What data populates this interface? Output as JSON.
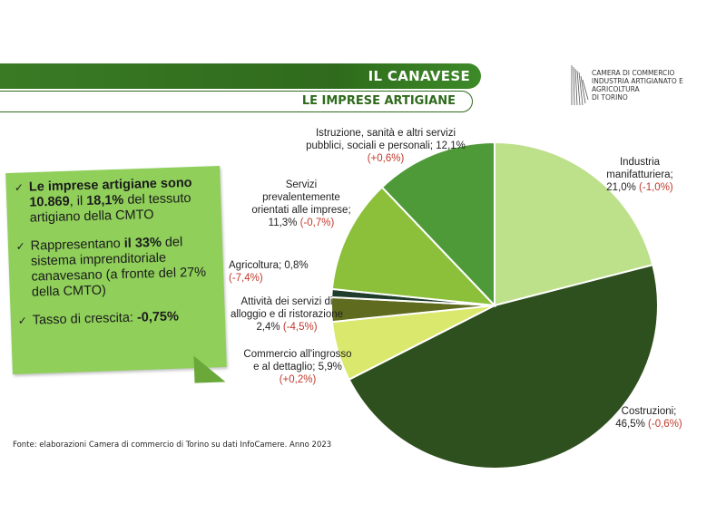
{
  "header": {
    "title": "IL CANAVESE",
    "subtitle": "LE IMPRESE ARTIGIANE"
  },
  "logo": {
    "line1": "CAMERA DI COMMERCIO",
    "line2": "INDUSTRIA ARTIGIANATO E AGRICOLTURA",
    "line3": "DI TORINO"
  },
  "note": {
    "b1_bold": "Le imprese artigiane sono 10.869",
    "b1_mid": ", il ",
    "b1_bold2": "18,1%",
    "b1_tail": " del tessuto artigiano della CMTO",
    "b2_pre": "Rappresentano ",
    "b2_bold": "il 33%",
    "b2_tail": " del sistema imprenditoriale canavesano (a fronte del 27% della CMTO)",
    "b3_pre": "Tasso di crescita: ",
    "b3_bold": "-0,75%"
  },
  "chart_data": {
    "type": "pie",
    "slices": [
      {
        "label": "Industria manifatturiera",
        "value": 21.0,
        "value_text": "21,0%",
        "change": "(-1,0%)",
        "color": "#bde08a"
      },
      {
        "label": "Costruzioni",
        "value": 46.5,
        "value_text": "46,5%",
        "change": "(-0,6%)",
        "color": "#2e4f1e"
      },
      {
        "label": "Commercio all'ingrosso e al dettaglio",
        "value": 5.9,
        "value_text": "5,9%",
        "change": "(+0,2%)",
        "color": "#dbe86e"
      },
      {
        "label": "Attività dei servizi di alloggio e di ristorazione",
        "value": 2.4,
        "value_text": "2,4%",
        "change": "(-4,5%)",
        "color": "#5f6b1e"
      },
      {
        "label": "Agricoltura",
        "value": 0.8,
        "value_text": "0,8%",
        "change": "(-7,4%)",
        "color": "#1f3d2a"
      },
      {
        "label": "Servizi prevalentemente orientati alle imprese",
        "value": 11.3,
        "value_text": "11,3%",
        "change": "(-0,7%)",
        "color": "#8cbf3a"
      },
      {
        "label": "Istruzione, sanità e altri servizi pubblici, sociali e personali",
        "value": 12.1,
        "value_text": "12,1%",
        "change": "(+0,6%)",
        "color": "#4f9a38"
      }
    ],
    "labels_text": {
      "industria_a": "Industria",
      "industria_b": "manifatturiera;",
      "industria_c": "21,0%",
      "industria_d": "(-1,0%)",
      "costruzioni_a": "Costruzioni;",
      "costruzioni_b": "46,5%",
      "costruzioni_c": "(-0,6%)",
      "commercio_a": "Commercio all'ingrosso",
      "commercio_b": "e al dettaglio; 5,9%",
      "commercio_c": "(+0,2%)",
      "alloggio_a": "Attività dei servizi di",
      "alloggio_b": "alloggio e di ristorazione",
      "alloggio_c": "2,4%",
      "alloggio_d": "(-4,5%)",
      "agricoltura_a": "Agricoltura; 0,8%",
      "agricoltura_b": "(-7,4%)",
      "servizi_a": "Servizi",
      "servizi_b": "prevalentemente",
      "servizi_c": "orientati alle imprese;",
      "servizi_d": "11,3%",
      "servizi_e": "(-0,7%)",
      "istruzione_a": "Istruzione, sanità e altri servizi",
      "istruzione_b": "pubblici, sociali e personali; 12,1%",
      "istruzione_c": "(+0,6%)"
    }
  },
  "source": "Fonte: elaborazioni Camera di commercio di Torino su dati InfoCamere. Anno 2023"
}
